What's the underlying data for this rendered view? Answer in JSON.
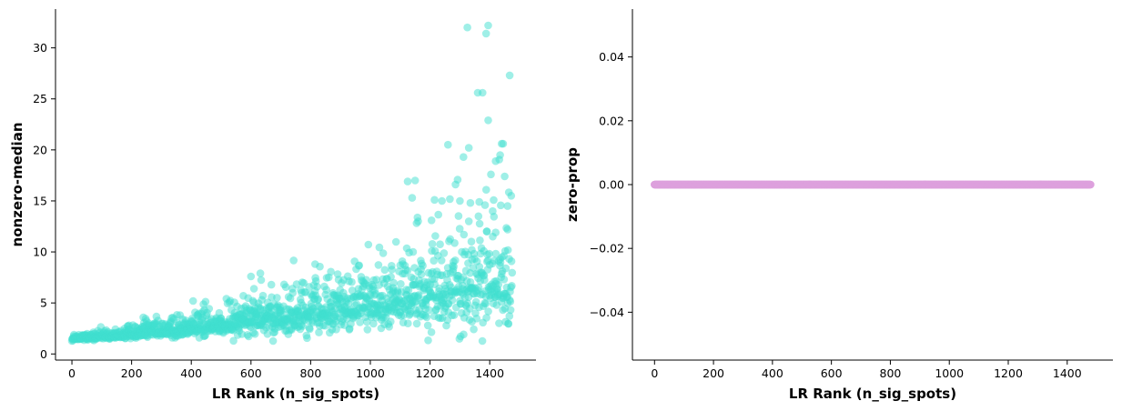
{
  "chart_data": [
    {
      "type": "scatter",
      "xlabel": "LR Rank (n_sig_spots)",
      "ylabel": "nonzero-median",
      "xlim": [
        -55,
        1555
      ],
      "ylim": [
        -0.6,
        33.8
      ],
      "xticks": [
        0,
        200,
        400,
        600,
        800,
        1000,
        1200,
        1400
      ],
      "yticks": [
        0,
        5,
        10,
        15,
        20,
        25,
        30
      ],
      "grid": false,
      "legend": "none",
      "color": "#40e0d0",
      "opacity": 0.5,
      "n_points": 1480,
      "highlight_points": {
        "x": [
          1325,
          1395,
          1388,
          1467,
          1360,
          1376,
          1395,
          1260,
          1440,
          1445,
          1330,
          1312,
          1420,
          1450,
          1435,
          1150,
          1125,
          1140,
          1215,
          1240,
          1300,
          1365,
          1460,
          1410,
          1160,
          1330,
          1460,
          1205,
          1390,
          1335,
          600,
          610,
          815,
          1420,
          1340
        ],
        "y": [
          32.0,
          32.2,
          31.4,
          27.3,
          25.6,
          25.6,
          22.9,
          20.5,
          20.6,
          20.6,
          20.2,
          19.3,
          18.9,
          17.4,
          19.5,
          17.0,
          16.9,
          15.3,
          15.1,
          15.0,
          15.0,
          14.9,
          14.5,
          14.0,
          13.0,
          13.0,
          12.2,
          13.1,
          12.0,
          14.8,
          7.6,
          6.4,
          8.8,
          11.9,
          10.2
        ]
      }
    },
    {
      "type": "scatter",
      "xlabel": "LR Rank (n_sig_spots)",
      "ylabel": "zero-prop",
      "xlim": [
        -75,
        1555
      ],
      "ylim": [
        -0.055,
        0.055
      ],
      "xticks": [
        0,
        200,
        400,
        600,
        800,
        1000,
        1200,
        1400
      ],
      "yticks": [
        -0.04,
        -0.02,
        0.0,
        0.02,
        0.04
      ],
      "ytick_labels": [
        "−0.04",
        "−0.02",
        "0.00",
        "0.02",
        "0.04"
      ],
      "grid": false,
      "legend": "none",
      "color": "#dda0dd",
      "opacity": 1,
      "n_points": 1480,
      "constant_y": 0
    }
  ]
}
